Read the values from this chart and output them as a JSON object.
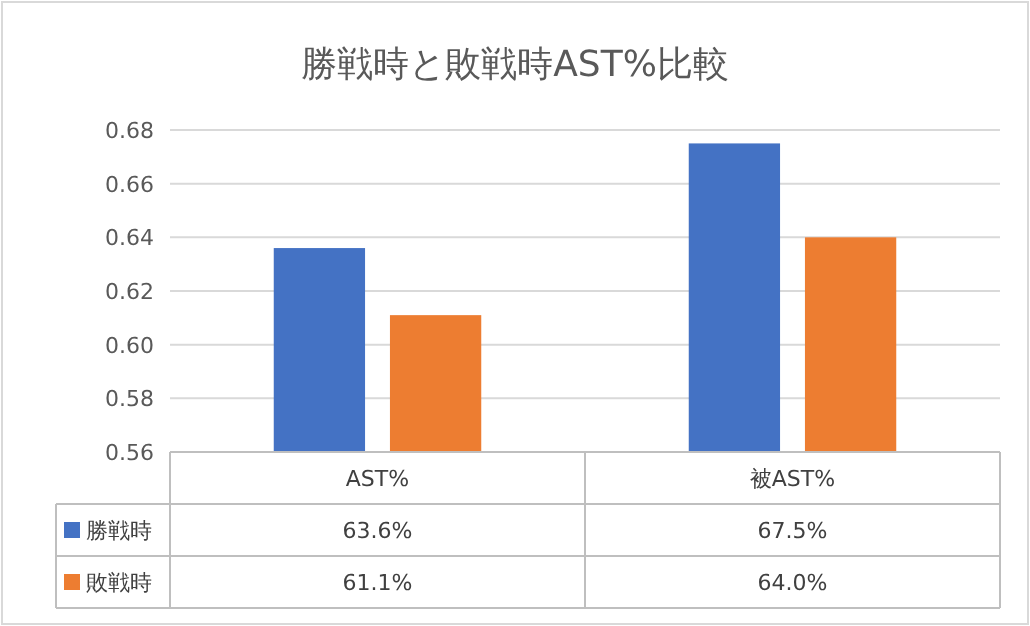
{
  "chart_data": {
    "type": "bar",
    "title": "勝戦時と敗戦時AST%比較",
    "categories": [
      "AST%",
      "被AST%"
    ],
    "series": [
      {
        "name": "勝戦時",
        "color": "#4472c4",
        "values": [
          0.636,
          0.675
        ],
        "value_labels": [
          "63.6%",
          "67.5%"
        ]
      },
      {
        "name": "敗戦時",
        "color": "#ed7d31",
        "values": [
          0.611,
          0.64
        ],
        "value_labels": [
          "61.1%",
          "64.0%"
        ]
      }
    ],
    "ylim": [
      0.56,
      0.68
    ],
    "yticks": [
      {
        "value": 0.56,
        "label": "0.56"
      },
      {
        "value": 0.58,
        "label": "0.58"
      },
      {
        "value": 0.6,
        "label": "0.60"
      },
      {
        "value": 0.62,
        "label": "0.62"
      },
      {
        "value": 0.64,
        "label": "0.64"
      },
      {
        "value": 0.66,
        "label": "0.66"
      },
      {
        "value": 0.68,
        "label": "0.68"
      }
    ],
    "grid": "y",
    "legend": "bottom"
  }
}
